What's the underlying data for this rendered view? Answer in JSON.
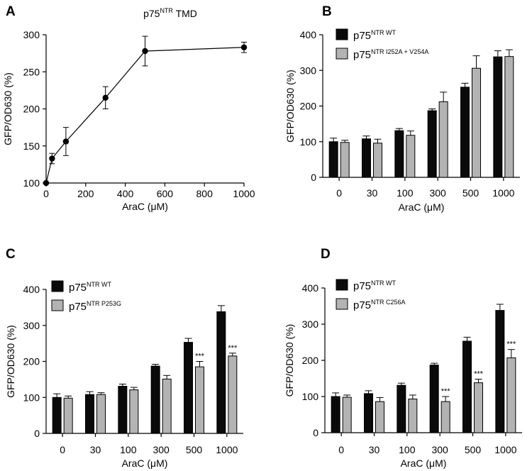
{
  "colors": {
    "wt": "#0a0a0a",
    "mutant": "#b3b3b3",
    "axis": "#000000",
    "line": "#000000"
  },
  "chart_data": [
    {
      "panel": "A",
      "type": "line",
      "title_main": "p75",
      "title_sup": "NTR",
      "title_rest": " TMD",
      "xlabel": "AraC (μM)",
      "ylabel": "GFP/OD630 (%)",
      "xlim": [
        0,
        1000
      ],
      "ylim": [
        100,
        300
      ],
      "xticks": [
        0,
        200,
        400,
        600,
        800,
        1000
      ],
      "yticks": [
        100,
        150,
        200,
        250,
        300
      ],
      "x": [
        0,
        30,
        100,
        300,
        500,
        1000
      ],
      "y": [
        100,
        133,
        156,
        215,
        278,
        283
      ],
      "err": [
        0,
        7,
        19,
        15,
        20,
        7
      ]
    },
    {
      "panel": "B",
      "type": "bar",
      "categories": [
        "0",
        "30",
        "100",
        "300",
        "500",
        "1000"
      ],
      "xlabel": "AraC (μM)",
      "ylabel": "GFP/OD630 (%)",
      "ylim": [
        0,
        400
      ],
      "yticks": [
        0,
        100,
        200,
        300,
        400
      ],
      "legend_position": "top-left",
      "series": [
        {
          "name_main": "p75",
          "name_sup": "NTR WT",
          "color_key": "wt",
          "values": [
            100,
            108,
            131,
            187,
            253,
            338
          ],
          "err": [
            10,
            8,
            6,
            5,
            11,
            17
          ],
          "annotations": [
            "",
            "",
            "",
            "",
            "",
            ""
          ]
        },
        {
          "name_main": "p75",
          "name_sup": "NTR I252A + V254A",
          "color_key": "mutant",
          "values": [
            98,
            96,
            118,
            212,
            306,
            339
          ],
          "err": [
            6,
            11,
            12,
            27,
            35,
            19
          ],
          "annotations": [
            "",
            "",
            "",
            "",
            "",
            ""
          ]
        }
      ]
    },
    {
      "panel": "C",
      "type": "bar",
      "categories": [
        "0",
        "30",
        "100",
        "300",
        "500",
        "1000"
      ],
      "xlabel": "AraC (μM)",
      "ylabel": "GFP/OD630 (%)",
      "ylim": [
        0,
        400
      ],
      "yticks": [
        0,
        100,
        200,
        300,
        400
      ],
      "legend_position": "top-left",
      "series": [
        {
          "name_main": "p75",
          "name_sup": "NTR WT",
          "color_key": "wt",
          "values": [
            100,
            108,
            131,
            187,
            253,
            338
          ],
          "err": [
            10,
            8,
            6,
            5,
            11,
            17
          ],
          "annotations": [
            "",
            "",
            "",
            "",
            "",
            ""
          ]
        },
        {
          "name_main": "p75",
          "name_sup": "NTR P253G",
          "color_key": "mutant",
          "values": [
            98,
            108,
            121,
            151,
            185,
            215
          ],
          "err": [
            6,
            5,
            7,
            10,
            15,
            8
          ],
          "annotations": [
            "",
            "",
            "",
            "",
            "***",
            "***"
          ]
        }
      ]
    },
    {
      "panel": "D",
      "type": "bar",
      "categories": [
        "0",
        "30",
        "100",
        "300",
        "500",
        "1000"
      ],
      "xlabel": "AraC (μM)",
      "ylabel": "GFP/OD630 (%)",
      "ylim": [
        0,
        400
      ],
      "yticks": [
        0,
        100,
        200,
        300,
        400
      ],
      "legend_position": "top-left",
      "series": [
        {
          "name_main": "p75",
          "name_sup": "NTR WT",
          "color_key": "wt",
          "values": [
            100,
            108,
            131,
            187,
            253,
            338
          ],
          "err": [
            10,
            8,
            6,
            5,
            11,
            17
          ],
          "annotations": [
            "",
            "",
            "",
            "",
            "",
            ""
          ]
        },
        {
          "name_main": "p75",
          "name_sup": "NTR C256A",
          "color_key": "mutant",
          "values": [
            98,
            86,
            93,
            86,
            138,
            207
          ],
          "err": [
            6,
            11,
            11,
            14,
            10,
            23
          ],
          "annotations": [
            "",
            "",
            "",
            "***",
            "***",
            "***"
          ]
        }
      ]
    }
  ]
}
